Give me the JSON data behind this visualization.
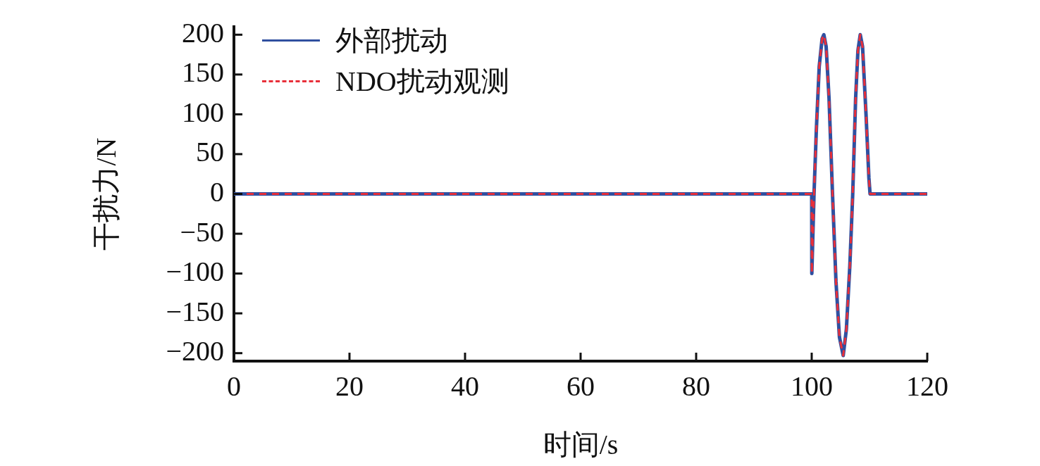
{
  "chart_data": {
    "type": "line",
    "xlabel": "时间/s",
    "ylabel": "干扰力/N",
    "xlim": [
      0,
      120
    ],
    "xticks": [
      0,
      20,
      40,
      60,
      80,
      100,
      120
    ],
    "ylim": [
      -210,
      210
    ],
    "yticks": [
      -200,
      -150,
      -100,
      -50,
      0,
      50,
      100,
      150,
      200
    ],
    "grid": false,
    "legend": "top left",
    "marker": "none",
    "x": [
      0,
      100,
      100.02,
      100.4,
      100.8,
      101.3,
      101.8,
      102.1,
      102.5,
      103,
      103.6,
      104.2,
      104.8,
      105.45,
      106,
      106.6,
      107.1,
      107.6,
      108,
      108.4,
      108.8,
      109.4,
      109.9,
      110.1,
      120
    ],
    "series": [
      {
        "name": "外部扰动",
        "color": "#3050a0",
        "line_style": "solid",
        "values": [
          0,
          0,
          -100,
          0,
          80,
          160,
          195,
          200,
          185,
          120,
          0,
          -110,
          -180,
          -203,
          -170,
          -90,
          0,
          120,
          180,
          200,
          185,
          100,
          20,
          0,
          0
        ]
      },
      {
        "name": "NDO扰动观测",
        "color": "#e8303a",
        "line_style": "dashed",
        "values": [
          0,
          0,
          -100,
          0,
          80,
          160,
          195,
          200,
          185,
          120,
          0,
          -110,
          -180,
          -203,
          -170,
          -90,
          0,
          120,
          180,
          200,
          185,
          100,
          20,
          0,
          0
        ]
      }
    ]
  }
}
